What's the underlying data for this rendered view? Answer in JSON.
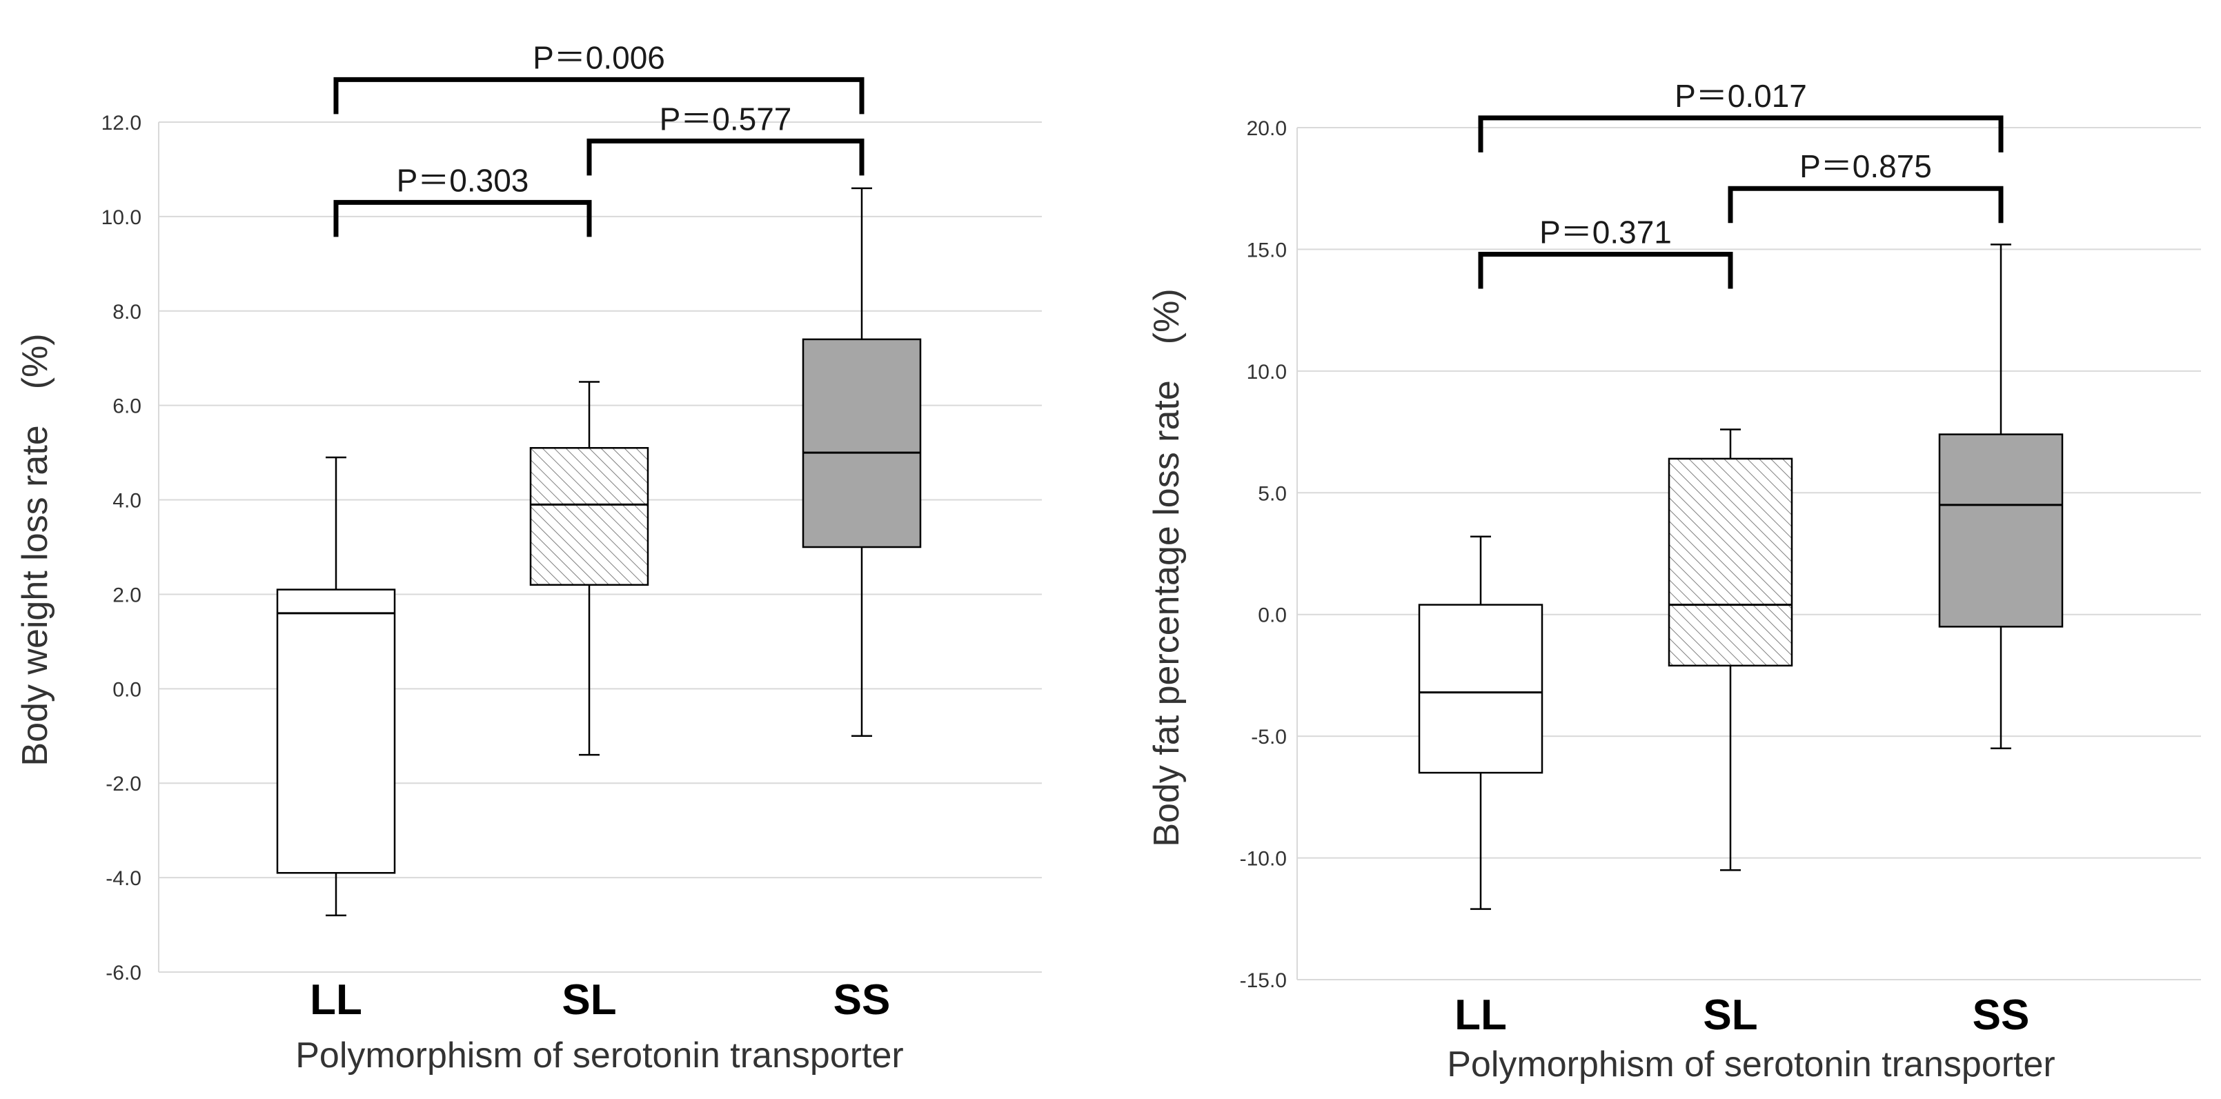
{
  "chart_data": [
    {
      "type": "boxplot",
      "ylabel": "Body weight loss rate　(%)",
      "xlabel": "Polymorphism of serotonin transporter",
      "ylim": [
        -6.0,
        12.0
      ],
      "yticks": [
        "12.0",
        "10.0",
        "8.0",
        "6.0",
        "4.0",
        "2.0",
        "0.0",
        "-2.0",
        "-4.0",
        "-6.0"
      ],
      "ytick_values": [
        12,
        10,
        8,
        6,
        4,
        2,
        0,
        -2,
        -4,
        -6
      ],
      "grid": true,
      "categories": [
        "LL",
        "SL",
        "SS"
      ],
      "boxes": [
        {
          "name": "LL",
          "min": -4.8,
          "q1": -3.9,
          "median": 1.6,
          "q3": 2.1,
          "max": 4.9,
          "fill": "white"
        },
        {
          "name": "SL",
          "min": -1.4,
          "q1": 2.2,
          "median": 3.9,
          "q3": 5.1,
          "max": 6.5,
          "fill": "hatched"
        },
        {
          "name": "SS",
          "min": -1.0,
          "q1": 3.0,
          "median": 5.0,
          "q3": 7.4,
          "max": 10.6,
          "fill": "gray"
        }
      ],
      "comparisons": [
        {
          "from": "LL",
          "to": "SS",
          "label": "P＝0.006",
          "level": 12.9
        },
        {
          "from": "SL",
          "to": "SS",
          "label": "P＝0.577",
          "level": 11.6
        },
        {
          "from": "LL",
          "to": "SL",
          "label": "P＝0.303",
          "level": 10.3
        }
      ]
    },
    {
      "type": "boxplot",
      "ylabel": "Body fat percentage loss rate　(%)",
      "xlabel": "Polymorphism of serotonin transporter",
      "ylim": [
        -15.0,
        20.0
      ],
      "yticks": [
        "20.0",
        "15.0",
        "10.0",
        "5.0",
        "0.0",
        "-5.0",
        "-10.0",
        "-15.0"
      ],
      "ytick_values": [
        20,
        15,
        10,
        5,
        0,
        -5,
        -10,
        -15
      ],
      "grid": true,
      "categories": [
        "LL",
        "SL",
        "SS"
      ],
      "boxes": [
        {
          "name": "LL",
          "min": -12.1,
          "q1": -6.5,
          "median": -3.2,
          "q3": 0.4,
          "max": 3.2,
          "fill": "white"
        },
        {
          "name": "SL",
          "min": -10.5,
          "q1": -2.1,
          "median": 0.4,
          "q3": 6.4,
          "max": 7.6,
          "fill": "hatched"
        },
        {
          "name": "SS",
          "min": -5.5,
          "q1": -0.5,
          "median": 4.5,
          "q3": 7.4,
          "max": 15.2,
          "fill": "gray"
        }
      ],
      "comparisons": [
        {
          "from": "LL",
          "to": "SS",
          "label": "P＝0.017",
          "level": 20.4
        },
        {
          "from": "SL",
          "to": "SS",
          "label": "P＝0.875",
          "level": 17.5
        },
        {
          "from": "LL",
          "to": "SL",
          "label": "P＝0.371",
          "level": 14.8
        }
      ]
    }
  ],
  "colors": {
    "gray_fill": "#a6a6a6",
    "grid": "#d9d9d9",
    "line": "#000000",
    "hatch": "#7f7f7f"
  }
}
